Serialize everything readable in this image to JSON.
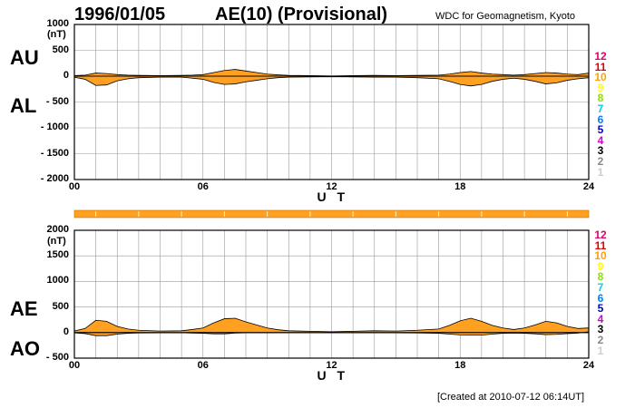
{
  "header": {
    "date": "1996/01/05",
    "title": "AE(10) (Provisional)",
    "source": "WDC for Geomagnetism, Kyoto"
  },
  "footer": {
    "created": "[Created at 2010-07-12 06:14UT]"
  },
  "colors": {
    "fill": "#ffa020",
    "grid": "#999999",
    "axis": "#000000",
    "status_bar": "#ffa020"
  },
  "legend": {
    "items": [
      {
        "label": "12",
        "color": "#e0006e"
      },
      {
        "label": "11",
        "color": "#e00000"
      },
      {
        "label": "10",
        "color": "#ffa000"
      },
      {
        "label": "9",
        "color": "#ffff00"
      },
      {
        "label": "8",
        "color": "#90e000"
      },
      {
        "label": "7",
        "color": "#00d0f0"
      },
      {
        "label": "6",
        "color": "#0080ff"
      },
      {
        "label": "5",
        "color": "#0000c8"
      },
      {
        "label": "4",
        "color": "#d000d0"
      },
      {
        "label": "3",
        "color": "#000000"
      },
      {
        "label": "2",
        "color": "#888888"
      },
      {
        "label": "1",
        "color": "#cccccc"
      }
    ]
  },
  "chart_data": [
    {
      "type": "area",
      "upper_label": "AU",
      "lower_label": "AL",
      "unit": "(nT)",
      "xlabel": "U T",
      "xlim": [
        0,
        24
      ],
      "ylim": [
        -2000,
        1000
      ],
      "x_ticks": [
        "00",
        "06",
        "12",
        "18",
        "24"
      ],
      "y_ticks": [
        "1000",
        "500",
        "0",
        "- 500",
        "- 1000",
        "- 1500",
        "- 2000"
      ],
      "grid": true,
      "series": [
        {
          "name": "AU",
          "x": [
            0,
            0.5,
            1,
            1.5,
            2,
            2.5,
            3,
            4,
            5,
            5.5,
            6,
            6.5,
            7,
            7.5,
            8,
            8.5,
            9,
            9.5,
            10,
            11,
            12,
            13,
            14,
            15,
            16,
            17,
            17.5,
            18,
            18.5,
            19,
            19.5,
            20,
            20.5,
            21,
            21.5,
            22,
            22.5,
            23,
            23.5,
            24
          ],
          "values": [
            10,
            20,
            60,
            50,
            30,
            20,
            15,
            10,
            15,
            20,
            30,
            70,
            110,
            130,
            100,
            70,
            40,
            25,
            15,
            10,
            5,
            10,
            15,
            10,
            15,
            20,
            40,
            70,
            90,
            60,
            40,
            30,
            20,
            30,
            50,
            70,
            60,
            40,
            30,
            60
          ]
        },
        {
          "name": "AL",
          "x": [
            0,
            0.5,
            1,
            1.5,
            2,
            2.5,
            3,
            4,
            5,
            5.5,
            6,
            6.5,
            7,
            7.5,
            8,
            8.5,
            9,
            9.5,
            10,
            11,
            12,
            13,
            14,
            15,
            16,
            17,
            17.5,
            18,
            18.5,
            19,
            19.5,
            20,
            20.5,
            21,
            21.5,
            22,
            22.5,
            23,
            23.5,
            24
          ],
          "values": [
            -20,
            -60,
            -180,
            -170,
            -90,
            -50,
            -30,
            -20,
            -20,
            -40,
            -60,
            -120,
            -160,
            -150,
            -110,
            -80,
            -50,
            -30,
            -20,
            -15,
            -10,
            -15,
            -20,
            -20,
            -30,
            -50,
            -100,
            -160,
            -190,
            -160,
            -100,
            -60,
            -40,
            -60,
            -100,
            -150,
            -130,
            -80,
            -50,
            -30
          ]
        }
      ]
    },
    {
      "type": "area",
      "upper_label": "AE",
      "lower_label": "AO",
      "unit": "(nT)",
      "xlabel": "U T",
      "xlim": [
        0,
        24
      ],
      "ylim": [
        -500,
        2000
      ],
      "x_ticks": [
        "00",
        "06",
        "12",
        "18",
        "24"
      ],
      "y_ticks": [
        "2000",
        "1500",
        "1000",
        "500",
        "0",
        "- 500"
      ],
      "grid": true,
      "series": [
        {
          "name": "AE",
          "x": [
            0,
            0.5,
            1,
            1.5,
            2,
            2.5,
            3,
            4,
            5,
            5.5,
            6,
            6.5,
            7,
            7.5,
            8,
            8.5,
            9,
            9.5,
            10,
            11,
            12,
            13,
            14,
            15,
            16,
            17,
            17.5,
            18,
            18.5,
            19,
            19.5,
            20,
            20.5,
            21,
            21.5,
            22,
            22.5,
            23,
            23.5,
            24
          ],
          "values": [
            30,
            80,
            240,
            220,
            120,
            70,
            45,
            30,
            35,
            60,
            90,
            190,
            270,
            280,
            210,
            150,
            90,
            55,
            35,
            25,
            15,
            25,
            35,
            30,
            45,
            70,
            140,
            230,
            280,
            220,
            140,
            90,
            60,
            90,
            150,
            220,
            190,
            120,
            80,
            90
          ]
        },
        {
          "name": "AO",
          "x": [
            0,
            0.5,
            1,
            1.5,
            2,
            2.5,
            3,
            4,
            5,
            5.5,
            6,
            6.5,
            7,
            7.5,
            8,
            8.5,
            9,
            9.5,
            10,
            11,
            12,
            13,
            14,
            15,
            16,
            17,
            17.5,
            18,
            18.5,
            19,
            19.5,
            20,
            20.5,
            21,
            21.5,
            22,
            22.5,
            23,
            23.5,
            24
          ],
          "values": [
            -5,
            -20,
            -60,
            -60,
            -30,
            -15,
            -8,
            -5,
            -3,
            -10,
            -15,
            -25,
            -25,
            -10,
            -5,
            -5,
            -5,
            -3,
            -3,
            -3,
            -3,
            -3,
            -3,
            -5,
            -8,
            -15,
            -30,
            -45,
            -50,
            -50,
            -30,
            -15,
            -10,
            -15,
            -25,
            -40,
            -35,
            -20,
            -10,
            15
          ]
        }
      ]
    }
  ]
}
